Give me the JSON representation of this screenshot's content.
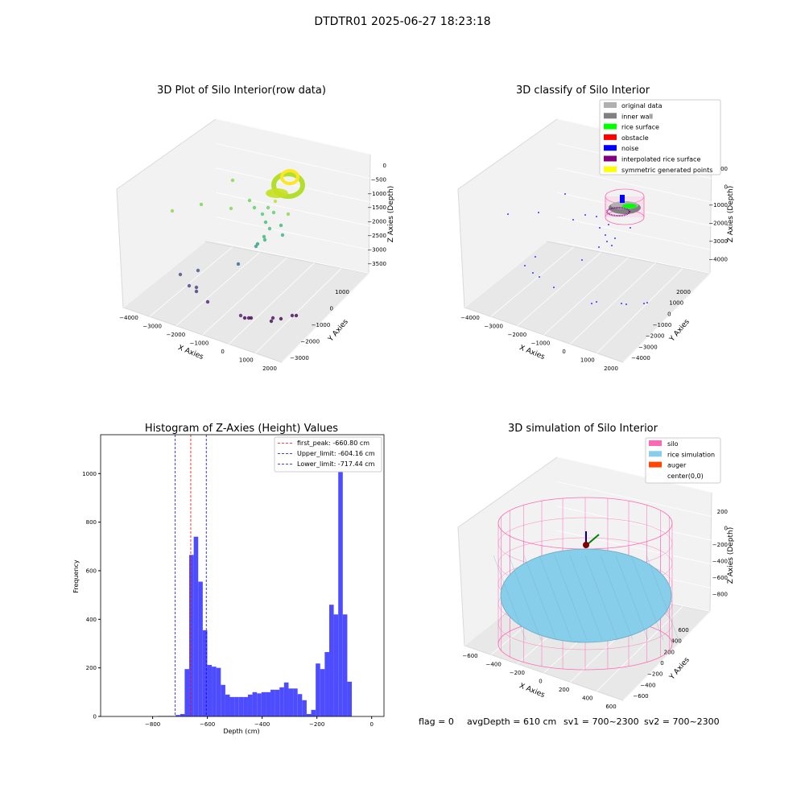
{
  "suptitle": "DTDTR01 2025-06-27 18:23:18",
  "footer": {
    "flag": "flag = 0",
    "avg": "avgDepth = 610 cm",
    "sv1": "sv1 = 700~2300",
    "sv2": "sv2 = 700~2300"
  },
  "colors": {
    "rice_surface": "#00ff00",
    "obstacle": "#ff0000",
    "noise": "#0000ff",
    "interpolated": "#800080",
    "symmetric": "#ffff00",
    "inner_wall": "#808080",
    "original": "#b0b0b0",
    "silo": "#ff69b4",
    "rice_sim": "#87ceeb",
    "auger": "#ff4500",
    "histogram": "#4d4dff"
  },
  "chart_data": [
    {
      "type": "scatter",
      "title": "3D Plot of Silo Interior(row data)",
      "xlabel": "X Axies",
      "ylabel": "Y Axies",
      "zlabel": "Z Axies (Depth)",
      "xticks": [
        "−4000",
        "−3000",
        "−2000",
        "−1000",
        "0",
        "1000",
        "2000"
      ],
      "yticks": [
        "−3000",
        "−2000",
        "−1000",
        "0",
        "1000"
      ],
      "zticks": [
        "0",
        "−500",
        "−1000",
        "−1500",
        "−2000",
        "−2500",
        "−3000",
        "−3500"
      ],
      "grid": true
    },
    {
      "type": "scatter",
      "title": "3D classify of Silo Interior",
      "xlabel": "X Axies",
      "ylabel": "Y Axies",
      "zlabel": "Z Axies (Depth)",
      "xticks": [
        "−4000",
        "−3000",
        "−2000",
        "−1000",
        "0",
        "1000",
        "2000"
      ],
      "yticks": [
        "−4000",
        "−3000",
        "−2000",
        "−1000",
        "0",
        "1000",
        "2000"
      ],
      "zticks": [
        "1000",
        "0",
        "−1000",
        "−2000",
        "−3000",
        "−4000"
      ],
      "legend": [
        "original data",
        "inner wall",
        "rice surface",
        "obstacle",
        "noise",
        "interpolated rice surface",
        "symmetric generated points"
      ],
      "legend_position": "top-right",
      "grid": true
    },
    {
      "type": "bar",
      "title": "Histogram of Z-Axies (Height) Values",
      "xlabel": "Depth (cm)",
      "ylabel": "Frequency",
      "xlim": [
        -990,
        45
      ],
      "ylim": [
        0,
        1160
      ],
      "xticks": [
        -800,
        -600,
        -400,
        -200,
        0
      ],
      "yticks": [
        0,
        200,
        400,
        600,
        800,
        1000
      ],
      "bin_width": 16.5,
      "bin_start": -782,
      "values": [
        2,
        2,
        2,
        2,
        6,
        10,
        195,
        665,
        740,
        555,
        355,
        212,
        205,
        200,
        130,
        90,
        80,
        80,
        80,
        80,
        90,
        100,
        95,
        100,
        100,
        110,
        110,
        120,
        140,
        115,
        115,
        92,
        67,
        10,
        27,
        218,
        195,
        265,
        460,
        420,
        1105,
        420,
        143
      ],
      "lines": [
        {
          "label": "first_peak: -660.80 cm",
          "x": -660.8,
          "color": "#ff0000"
        },
        {
          "label": "Upper_limit: -604.16 cm",
          "x": -604.16,
          "color": "#0000ff"
        },
        {
          "label": "Lower_limit: -717.44 cm",
          "x": -717.44,
          "color": "#0000ff"
        }
      ],
      "legend_position": "top-right"
    },
    {
      "type": "area",
      "title": "3D simulation of Silo Interior",
      "xlabel": "X Axies",
      "ylabel": "Y Axies",
      "zlabel": "Z Axies (Depth)",
      "xticks": [
        "−600",
        "−400",
        "−200",
        "0",
        "200",
        "400",
        "600"
      ],
      "yticks": [
        "−600",
        "−400",
        "−200",
        "0",
        "200",
        "400",
        "600"
      ],
      "zticks": [
        "200",
        "0",
        "−200",
        "−400",
        "−600",
        "−800"
      ],
      "legend": [
        "silo",
        "rice simulation",
        "auger",
        "center(0,0)"
      ],
      "legend_position": "top-right",
      "grid": true
    }
  ]
}
